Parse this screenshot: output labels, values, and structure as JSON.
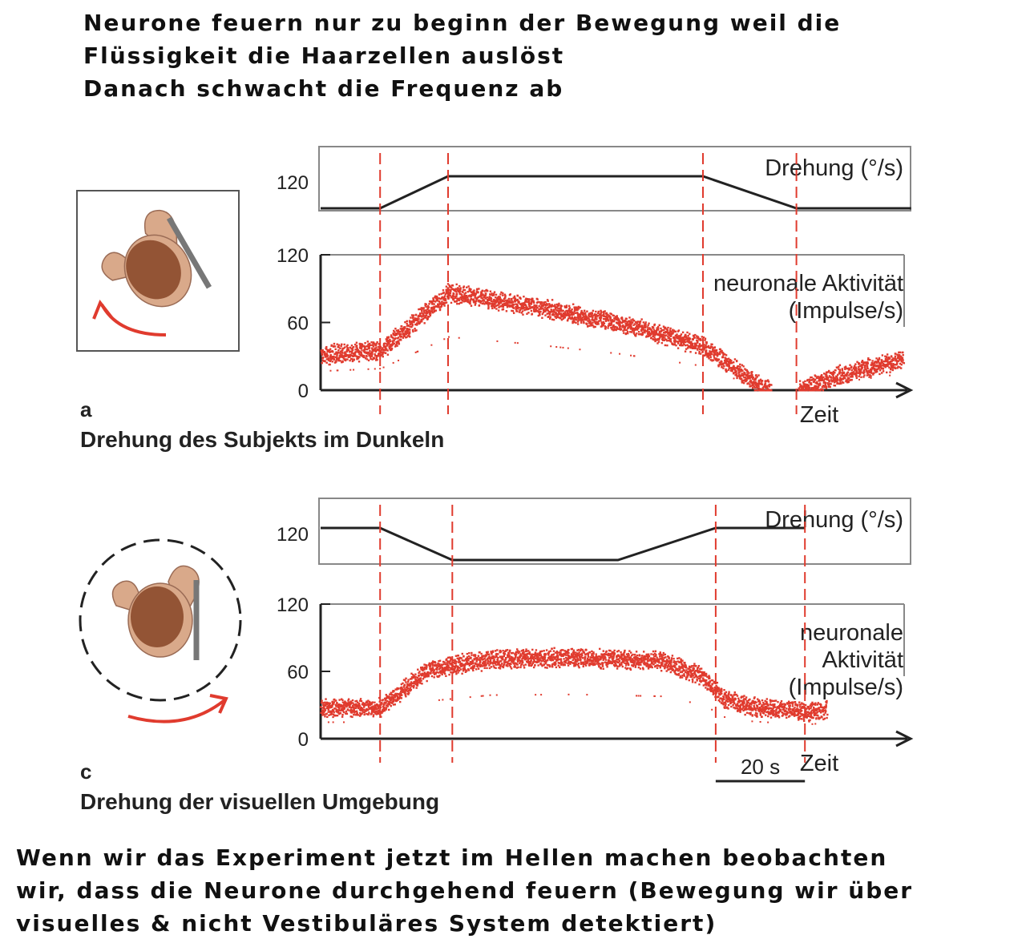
{
  "notes": {
    "top": [
      "Neurone feuern nur zu beginn der Bewegung weil die",
      "Flüssigkeit die Haarzellen auslöst",
      "Danach schwacht die Frequenz ab"
    ],
    "bottom": [
      "Wenn wir das Experiment jetzt im Hellen machen beobachten",
      "wir, dass die Neurone durchgehend feuern (Bewegung wir über",
      "visuelles & nicht Vestibuläres System detektiert)"
    ]
  },
  "colors": {
    "trace": "#e03b2e",
    "marker": "#e03b2e",
    "axis": "#222222",
    "frame": "#888888",
    "head": "#8b4a2b",
    "skin": "#d9a98a"
  },
  "chart_data": [
    {
      "type": "line",
      "panel_letter": "a",
      "caption": "Drehung des Subjekts im Dunkeln",
      "time_label": "Zeit",
      "icon": "rotating-subject-icon",
      "rotation": {
        "label": "Drehung (°/s)",
        "tick": "120",
        "x": [
          0,
          14,
          30,
          90,
          112,
          139
        ],
        "y": [
          0,
          0,
          120,
          120,
          0,
          0
        ]
      },
      "activity": {
        "label_lines": [
          "neuronale Aktivität",
          "(Impulse/s)"
        ],
        "yticks": [
          "0",
          "60",
          "120"
        ],
        "ylim": [
          0,
          120
        ],
        "x": [
          0,
          14,
          30,
          50,
          70,
          90,
          100,
          106,
          112,
          122,
          137
        ],
        "y": [
          32,
          36,
          87,
          75,
          60,
          40,
          12,
          0,
          0,
          14,
          28
        ]
      },
      "marker_x": [
        14,
        30,
        90,
        112
      ]
    },
    {
      "type": "line",
      "panel_letter": "c",
      "caption": "Drehung der visuellen Umgebung",
      "time_label": "Zeit",
      "scale_bar": "20 s",
      "icon": "rotating-surround-icon",
      "rotation": {
        "label": "Drehung (°/s)",
        "tick": "120",
        "x": [
          0,
          14,
          31,
          70,
          93,
          114
        ],
        "y": [
          120,
          120,
          0,
          0,
          120,
          120
        ]
      },
      "activity": {
        "label_lines": [
          "neuronale",
          "Aktivität",
          "(Impulse/s)"
        ],
        "yticks": [
          "0",
          "60",
          "120"
        ],
        "ylim": [
          0,
          120
        ],
        "x": [
          0,
          14,
          25,
          40,
          60,
          80,
          90,
          95,
          100,
          114,
          119
        ],
        "y": [
          28,
          28,
          62,
          72,
          73,
          70,
          56,
          36,
          30,
          24,
          27
        ]
      },
      "marker_x": [
        14,
        31,
        93,
        114
      ]
    }
  ]
}
